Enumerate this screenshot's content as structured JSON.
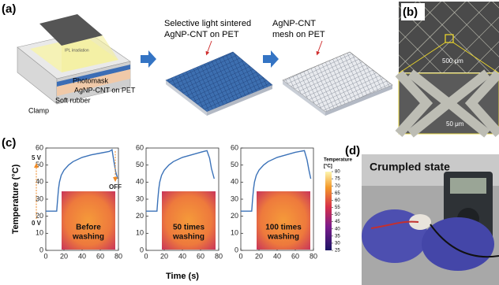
{
  "panel_a": {
    "label": "(a)",
    "irradiation": "IPL irradiation",
    "photomask": "Photomask",
    "layer": "AgNP-CNT on PET",
    "rubber": "Soft rubber",
    "clamp": "Clamp",
    "step1": [
      "Selective light sintered",
      "AgNP-CNT on PET"
    ],
    "step2": [
      "AgNP-CNT",
      "mesh on PET"
    ]
  },
  "panel_b": {
    "label": "(b)",
    "scale_large": "500 μm",
    "scale_small": "50 μm"
  },
  "panel_c": {
    "label": "(c)"
  },
  "chart_data": [
    {
      "type": "line",
      "y_label": "Temperature (°C)",
      "color": "#3b72b8",
      "x": [
        0,
        10,
        12,
        13,
        14,
        15,
        17,
        20,
        25,
        30,
        40,
        50,
        60,
        70,
        73,
        75,
        77,
        79
      ],
      "values": [
        23,
        23,
        23,
        30,
        36,
        40,
        44,
        47,
        50,
        52,
        54.5,
        56,
        57,
        58,
        59,
        52,
        46,
        42
      ],
      "xlim": [
        0,
        80
      ],
      "xticks": [
        0,
        20,
        40,
        60,
        80
      ],
      "ylim": [
        0,
        60
      ],
      "yticks": [
        0,
        10,
        20,
        30,
        40,
        50,
        60
      ],
      "annotations": [
        "5 V",
        "0 V",
        "OFF"
      ],
      "inset_label": [
        "Before",
        "washing"
      ]
    },
    {
      "type": "line",
      "x_label": "Time (s)",
      "color": "#3b72b8",
      "x": [
        0,
        10,
        12,
        13,
        14,
        15,
        17,
        20,
        25,
        30,
        40,
        50,
        60,
        67,
        70,
        72,
        75
      ],
      "values": [
        23,
        23,
        23,
        30,
        36,
        40,
        44,
        47,
        50,
        52,
        54.5,
        56,
        57.5,
        58.5,
        54,
        48,
        42
      ],
      "xlim": [
        0,
        80
      ],
      "xticks": [
        0,
        20,
        40,
        60,
        80
      ],
      "ylim": [
        0,
        60
      ],
      "yticks": [
        0,
        10,
        20,
        30,
        40,
        50,
        60
      ],
      "inset_label": [
        "50 times",
        "washing"
      ]
    },
    {
      "type": "line",
      "color": "#3b72b8",
      "x": [
        0,
        10,
        12,
        13,
        14,
        15,
        17,
        20,
        25,
        30,
        40,
        50,
        60,
        70,
        73,
        75,
        77
      ],
      "values": [
        23,
        23,
        23,
        30,
        36,
        40,
        44,
        47,
        50,
        52,
        54.5,
        56,
        57.5,
        58.5,
        53,
        47,
        42
      ],
      "xlim": [
        0,
        80
      ],
      "xticks": [
        0,
        20,
        40,
        60,
        80
      ],
      "ylim": [
        0,
        60
      ],
      "yticks": [
        0,
        10,
        20,
        30,
        40,
        50,
        60
      ],
      "inset_label": [
        "100 times",
        "washing"
      ]
    }
  ],
  "colorbar": {
    "title": [
      "Temperature",
      "[°C]"
    ],
    "lim": [
      25,
      80
    ],
    "ticks": [
      80,
      75,
      70,
      65,
      60,
      55,
      50,
      45,
      40,
      35,
      30,
      25
    ]
  },
  "panel_d": {
    "label": "(d)",
    "caption": "Crumpled state"
  }
}
